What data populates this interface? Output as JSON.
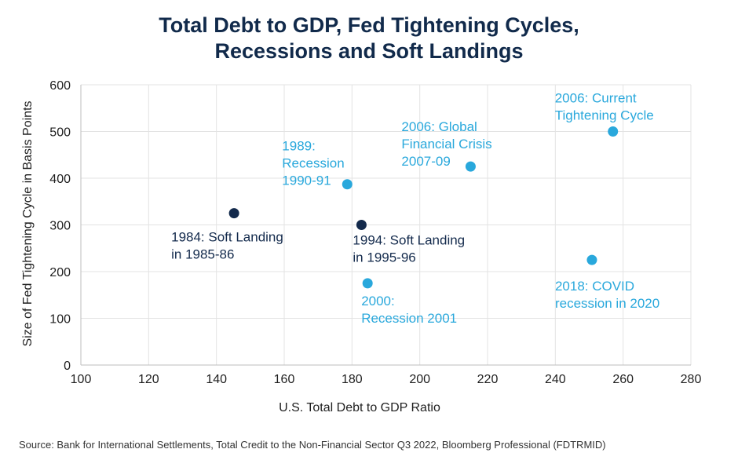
{
  "title": {
    "line1": "Total Debt to GDP, Fed Tightening Cycles,",
    "line2": "Recessions and Soft Landings"
  },
  "source": "Source: Bank for International Settlements, Total Credit to the Non-Financial Sector Q3 2022, Bloomberg Professional (FDTRMID)",
  "colors": {
    "soft_landing": "#132a4c",
    "recession": "#29a8dc",
    "grid": "#e3e3e3",
    "title": "#112a4b"
  },
  "chart_data": {
    "type": "scatter",
    "title": "Total Debt to GDP, Fed Tightening Cycles, Recessions and Soft Landings",
    "xlabel": "U.S. Total Debt to GDP Ratio",
    "ylabel": "Size of Fed Tightening Cycle in Basis Points",
    "xlim": [
      100,
      280
    ],
    "ylim": [
      0,
      600
    ],
    "xticks": [
      100,
      120,
      140,
      160,
      180,
      200,
      220,
      240,
      260,
      280
    ],
    "yticks": [
      0,
      100,
      200,
      300,
      400,
      500,
      600
    ],
    "grid": true,
    "points": [
      {
        "x": 145.2,
        "y": 325,
        "group": "soft_landing",
        "label": [
          "1984: Soft Landing",
          "in 1985-86"
        ]
      },
      {
        "x": 182.8,
        "y": 300,
        "group": "soft_landing",
        "label": [
          "1994: Soft Landing",
          "in 1995-96"
        ]
      },
      {
        "x": 178.6,
        "y": 387,
        "group": "recession",
        "label": [
          "1989:",
          "Recession",
          "1990-91"
        ]
      },
      {
        "x": 184.6,
        "y": 175,
        "group": "recession",
        "label": [
          "2000:",
          "Recession 2001"
        ]
      },
      {
        "x": 215.0,
        "y": 425,
        "group": "recession",
        "label": [
          "2006: Global",
          "Financial Crisis",
          "2007-09"
        ]
      },
      {
        "x": 257.0,
        "y": 500,
        "group": "recession",
        "label": [
          "2006: Current",
          "Tightening Cycle"
        ]
      },
      {
        "x": 250.8,
        "y": 225,
        "group": "recession",
        "label": [
          "2018: COVID",
          "recession in 2020"
        ]
      }
    ]
  }
}
